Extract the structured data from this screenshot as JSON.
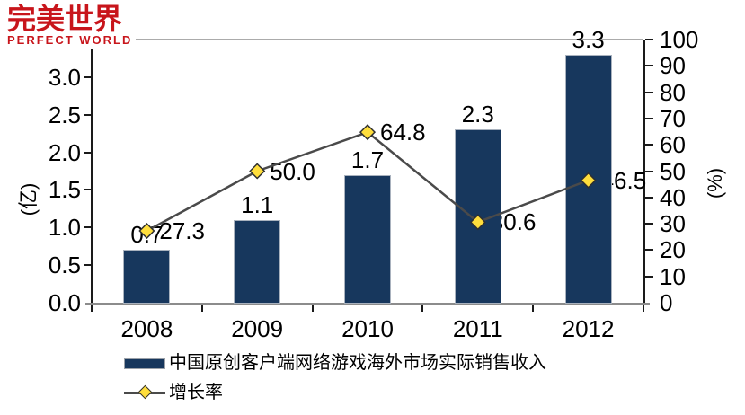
{
  "logo": {
    "cn": "完美世界",
    "en": "PERFECT WORLD",
    "color": "#C8151B"
  },
  "chart_data": {
    "type": "bar",
    "subtype": "combo bar + line, dual axis",
    "categories": [
      "2008",
      "2009",
      "2010",
      "2011",
      "2012"
    ],
    "series": [
      {
        "name": "中国原创客户端网络游戏海外市场实际销售收入",
        "type": "bar",
        "axis": "left",
        "values": [
          0.7,
          1.1,
          1.7,
          2.3,
          3.3
        ],
        "labels": [
          "0.7",
          "1.1",
          "1.7",
          "2.3",
          "3.3"
        ],
        "color": "#17375D"
      },
      {
        "name": "增长率",
        "type": "line",
        "axis": "right",
        "values": [
          27.3,
          50.0,
          64.8,
          30.6,
          46.5
        ],
        "labels": [
          "27.3",
          "50.0",
          "64.8",
          "30.6",
          "46.5"
        ],
        "line_color": "#4A4A4A",
        "marker": "diamond",
        "marker_color": "#FFDE3C"
      }
    ],
    "left_axis": {
      "title": "(亿)",
      "min": 0,
      "max": 3.5,
      "tick_step": 0.5,
      "tick_labels": [
        "0.0",
        "0.5",
        "1.0",
        "1.5",
        "2.0",
        "2.5",
        "3.0"
      ]
    },
    "right_axis": {
      "title": "(%)",
      "min": 0,
      "max": 100,
      "tick_step": 10,
      "tick_labels": [
        "0",
        "10",
        "20",
        "30",
        "40",
        "50",
        "60",
        "70",
        "80",
        "90",
        "100"
      ]
    },
    "grid": "single horizontal gridline at top (100%)",
    "legend_position": "bottom-left"
  },
  "legend": {
    "items": [
      {
        "label": "中国原创客户端网络游戏海外市场实际销售收入",
        "swatch": "bar"
      },
      {
        "label": "增长率",
        "swatch": "line-diamond"
      }
    ]
  },
  "colors": {
    "bar": "#17375D",
    "bar_border": "#A9B2BE",
    "line": "#4A4A4A",
    "marker_fill": "#FFDE3C",
    "marker_border": "#2F2F2F",
    "axis_line": "#1A1A1A",
    "baseline": "#8C8C8C",
    "gridline": "#ABABAB",
    "logo_red": "#C8151B"
  }
}
